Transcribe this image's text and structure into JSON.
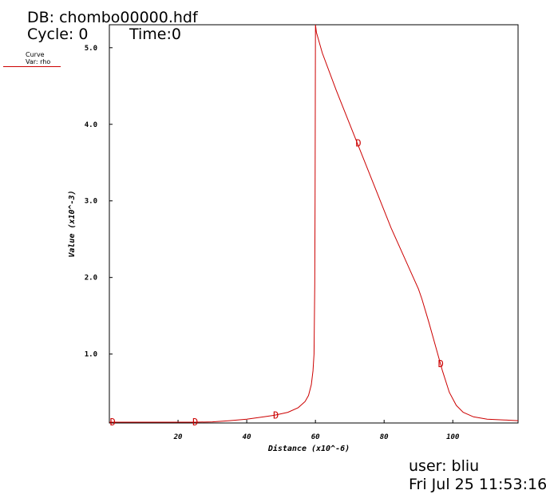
{
  "header": {
    "db": "DB: chombo00000.hdf",
    "cycle": "Cycle: 0",
    "time": "Time:0"
  },
  "legend": {
    "line1": "Curve",
    "line2": "Var: rho",
    "color": "#cc0000"
  },
  "footer": {
    "user": "user: bliu",
    "date": "Fri Jul 25 11:53:16"
  },
  "chart_data": {
    "type": "line",
    "xlabel": "Distance (x10^-6)",
    "ylabel": "Value (x10^-3)",
    "xlim": [
      0,
      119
    ],
    "ylim": [
      0.1,
      5.3
    ],
    "xticks": [
      "20",
      "40",
      "60",
      "80",
      "100"
    ],
    "yticks": [
      "1.0",
      "2.0",
      "3.0",
      "4.0",
      "5.0"
    ],
    "grid": false,
    "series": [
      {
        "color": "#cc0000",
        "marker_label": "D",
        "x": [
          0,
          5,
          10,
          15,
          20,
          25,
          30,
          35,
          40,
          45,
          48,
          52,
          55,
          57,
          58,
          58.8,
          59.3,
          59.6,
          59.8,
          59.9,
          60,
          60.3,
          62,
          66,
          70,
          74,
          78,
          82,
          86,
          88,
          90,
          91,
          93,
          95,
          97,
          99,
          101,
          103,
          106,
          110,
          115,
          119
        ],
        "values": [
          0.05,
          0.06,
          0.07,
          0.08,
          0.09,
          0.1,
          0.115,
          0.13,
          0.15,
          0.18,
          0.2,
          0.24,
          0.3,
          0.38,
          0.46,
          0.6,
          0.78,
          1.0,
          1.9,
          3.0,
          5.3,
          5.2,
          4.93,
          4.45,
          4.0,
          3.55,
          3.1,
          2.65,
          2.25,
          2.05,
          1.85,
          1.72,
          1.42,
          1.1,
          0.78,
          0.5,
          0.33,
          0.24,
          0.18,
          0.15,
          0.14,
          0.13
        ],
        "markers_x": [
          1,
          25,
          48.5,
          72.5,
          96.5
        ],
        "markers_y": [
          0.055,
          0.1,
          0.2,
          3.75,
          0.87
        ]
      }
    ]
  }
}
